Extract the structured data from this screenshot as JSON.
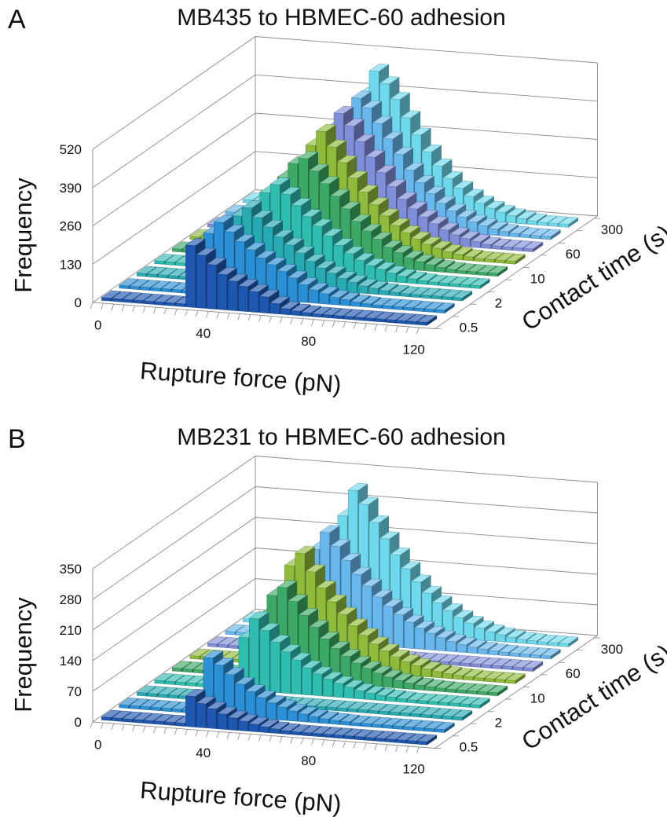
{
  "chart_data": [
    {
      "type": "bar3d",
      "panel_label": "A",
      "title": "MB435 to HBMEC-60 adhesion",
      "xlabel": "Rupture force (pN)",
      "ylabel": "Frequency",
      "zlabel": "Contact time (s)",
      "x_ticks": [
        "0",
        "40",
        "80",
        "120"
      ],
      "y_ticks": [
        "0",
        "130",
        "260",
        "390",
        "520"
      ],
      "z_ticks": [
        "0.5",
        "2",
        "10",
        "60",
        "300"
      ],
      "ylim": [
        0,
        520
      ],
      "bin_width_pN": 4,
      "series": [
        {
          "label": "0.5 s",
          "color": "#1e57b0",
          "values": [
            10,
            10,
            10,
            10,
            10,
            10,
            10,
            10,
            210,
            180,
            150,
            120,
            100,
            85,
            70,
            55,
            35,
            20,
            15,
            12,
            10,
            10,
            10,
            10,
            10,
            10,
            10,
            10,
            10,
            10,
            10
          ]
        },
        {
          "label": "0.5 s",
          "color": "#2a8fd4",
          "values": [
            10,
            10,
            10,
            10,
            10,
            10,
            10,
            10,
            210,
            250,
            220,
            190,
            165,
            140,
            120,
            100,
            80,
            60,
            45,
            35,
            25,
            20,
            15,
            12,
            10,
            10,
            10,
            10,
            10,
            10,
            10
          ]
        },
        {
          "label": "2 s",
          "color": "#27aab2",
          "values": [
            10,
            10,
            10,
            10,
            10,
            10,
            10,
            10,
            180,
            230,
            260,
            230,
            200,
            170,
            145,
            120,
            95,
            75,
            60,
            45,
            35,
            25,
            20,
            15,
            12,
            10,
            10,
            10,
            10,
            10,
            10
          ]
        },
        {
          "label": "2 s",
          "color": "#2fbdb0",
          "values": [
            10,
            10,
            10,
            10,
            10,
            10,
            10,
            10,
            150,
            220,
            270,
            300,
            270,
            235,
            200,
            170,
            140,
            110,
            85,
            65,
            50,
            40,
            30,
            22,
            16,
            12,
            10,
            10,
            10,
            10,
            10
          ]
        },
        {
          "label": "10 s",
          "color": "#3caa66",
          "values": [
            10,
            10,
            10,
            10,
            10,
            10,
            10,
            10,
            130,
            200,
            280,
            330,
            350,
            310,
            270,
            230,
            190,
            150,
            120,
            95,
            70,
            55,
            40,
            30,
            22,
            16,
            12,
            10,
            10,
            10,
            10
          ]
        },
        {
          "label": "10 s",
          "color": "#8ebb3a",
          "values": [
            10,
            10,
            10,
            10,
            10,
            10,
            10,
            10,
            120,
            190,
            270,
            350,
            400,
            350,
            300,
            250,
            205,
            165,
            130,
            100,
            78,
            60,
            45,
            34,
            25,
            18,
            13,
            10,
            10,
            10,
            10
          ]
        },
        {
          "label": "60 s",
          "color": "#7f8ed8",
          "values": [
            10,
            10,
            10,
            10,
            10,
            10,
            10,
            10,
            115,
            190,
            280,
            360,
            420,
            380,
            330,
            280,
            230,
            185,
            145,
            115,
            90,
            70,
            52,
            38,
            28,
            20,
            14,
            11,
            10,
            10,
            10
          ]
        },
        {
          "label": "60 s",
          "color": "#67b6ec",
          "values": [
            10,
            10,
            10,
            10,
            10,
            10,
            10,
            10,
            110,
            180,
            270,
            350,
            430,
            400,
            350,
            300,
            250,
            200,
            160,
            125,
            95,
            72,
            54,
            40,
            30,
            22,
            16,
            12,
            10,
            10,
            10
          ]
        },
        {
          "label": "300 s",
          "color": "#6ed9ec",
          "values": [
            10,
            10,
            10,
            10,
            10,
            10,
            10,
            10,
            115,
            200,
            300,
            400,
            480,
            440,
            390,
            330,
            275,
            220,
            175,
            135,
            105,
            80,
            60,
            45,
            34,
            25,
            18,
            13,
            10,
            10,
            10
          ]
        }
      ]
    },
    {
      "type": "bar3d",
      "panel_label": "B",
      "title": "MB231 to HBMEC-60 adhesion",
      "xlabel": "Rupture force (pN)",
      "ylabel": "Frequency",
      "zlabel": "Contact time (s)",
      "x_ticks": [
        "0",
        "40",
        "80",
        "120"
      ],
      "y_ticks": [
        "0",
        "70",
        "140",
        "210",
        "280",
        "350"
      ],
      "z_ticks": [
        "0.5",
        "2",
        "10",
        "60",
        "300"
      ],
      "ylim": [
        0,
        350
      ],
      "bin_width_pN": 4,
      "series": [
        {
          "label": "0.5 s",
          "color": "#1e57b0",
          "values": [
            7,
            7,
            7,
            7,
            7,
            7,
            7,
            7,
            70,
            55,
            45,
            35,
            28,
            22,
            17,
            13,
            10,
            8,
            7,
            7,
            7,
            7,
            7,
            7,
            7,
            7,
            7,
            7,
            7,
            7,
            7
          ]
        },
        {
          "label": "0.5 s",
          "color": "#2a8fd4",
          "values": [
            7,
            7,
            7,
            7,
            7,
            7,
            7,
            7,
            130,
            115,
            95,
            75,
            60,
            48,
            38,
            30,
            23,
            18,
            14,
            11,
            9,
            8,
            7,
            7,
            7,
            7,
            7,
            7,
            7,
            7,
            7
          ]
        },
        {
          "label": "2 s",
          "color": "#27aab2",
          "values": [
            7,
            7,
            7,
            7,
            7,
            7,
            7,
            7,
            7,
            7,
            7,
            7,
            7,
            7,
            7,
            7,
            7,
            7,
            7,
            7,
            7,
            7,
            7,
            7,
            7,
            7,
            7,
            7,
            7,
            7,
            7
          ]
        },
        {
          "label": "2 s",
          "color": "#2fbdb0",
          "values": [
            7,
            7,
            7,
            7,
            7,
            7,
            7,
            7,
            120,
            165,
            140,
            115,
            95,
            78,
            62,
            50,
            40,
            32,
            25,
            19,
            15,
            12,
            10,
            8,
            7,
            7,
            7,
            7,
            7,
            7,
            7
          ]
        },
        {
          "label": "10 s",
          "color": "#3caa66",
          "values": [
            7,
            7,
            7,
            7,
            7,
            7,
            7,
            7,
            140,
            190,
            210,
            180,
            150,
            125,
            100,
            80,
            64,
            50,
            40,
            31,
            24,
            18,
            14,
            11,
            9,
            8,
            7,
            7,
            7,
            7,
            7
          ]
        },
        {
          "label": "10 s",
          "color": "#8ebb3a",
          "values": [
            7,
            7,
            7,
            7,
            7,
            7,
            7,
            7,
            150,
            230,
            260,
            220,
            185,
            155,
            128,
            104,
            84,
            66,
            52,
            40,
            31,
            24,
            18,
            14,
            11,
            9,
            8,
            7,
            7,
            7,
            7
          ]
        },
        {
          "label": "60 s",
          "color": "#7f8ed8",
          "values": [
            7,
            7,
            7,
            7,
            7,
            7,
            7,
            7,
            7,
            7,
            7,
            7,
            7,
            7,
            7,
            7,
            7,
            7,
            7,
            7,
            7,
            7,
            7,
            7,
            7,
            7,
            7,
            7,
            7,
            7,
            7
          ]
        },
        {
          "label": "60 s",
          "color": "#67b6ec",
          "values": [
            7,
            7,
            7,
            7,
            7,
            7,
            7,
            7,
            210,
            250,
            220,
            190,
            160,
            135,
            112,
            92,
            75,
            60,
            48,
            38,
            30,
            23,
            18,
            14,
            11,
            9,
            8,
            7,
            7,
            7,
            7
          ]
        },
        {
          "label": "300 s",
          "color": "#6ed9ec",
          "values": [
            7,
            7,
            7,
            7,
            7,
            7,
            7,
            7,
            180,
            260,
            320,
            290,
            250,
            215,
            180,
            150,
            122,
            98,
            78,
            62,
            48,
            37,
            28,
            21,
            16,
            12,
            9,
            8,
            7,
            7,
            7
          ]
        }
      ]
    }
  ]
}
